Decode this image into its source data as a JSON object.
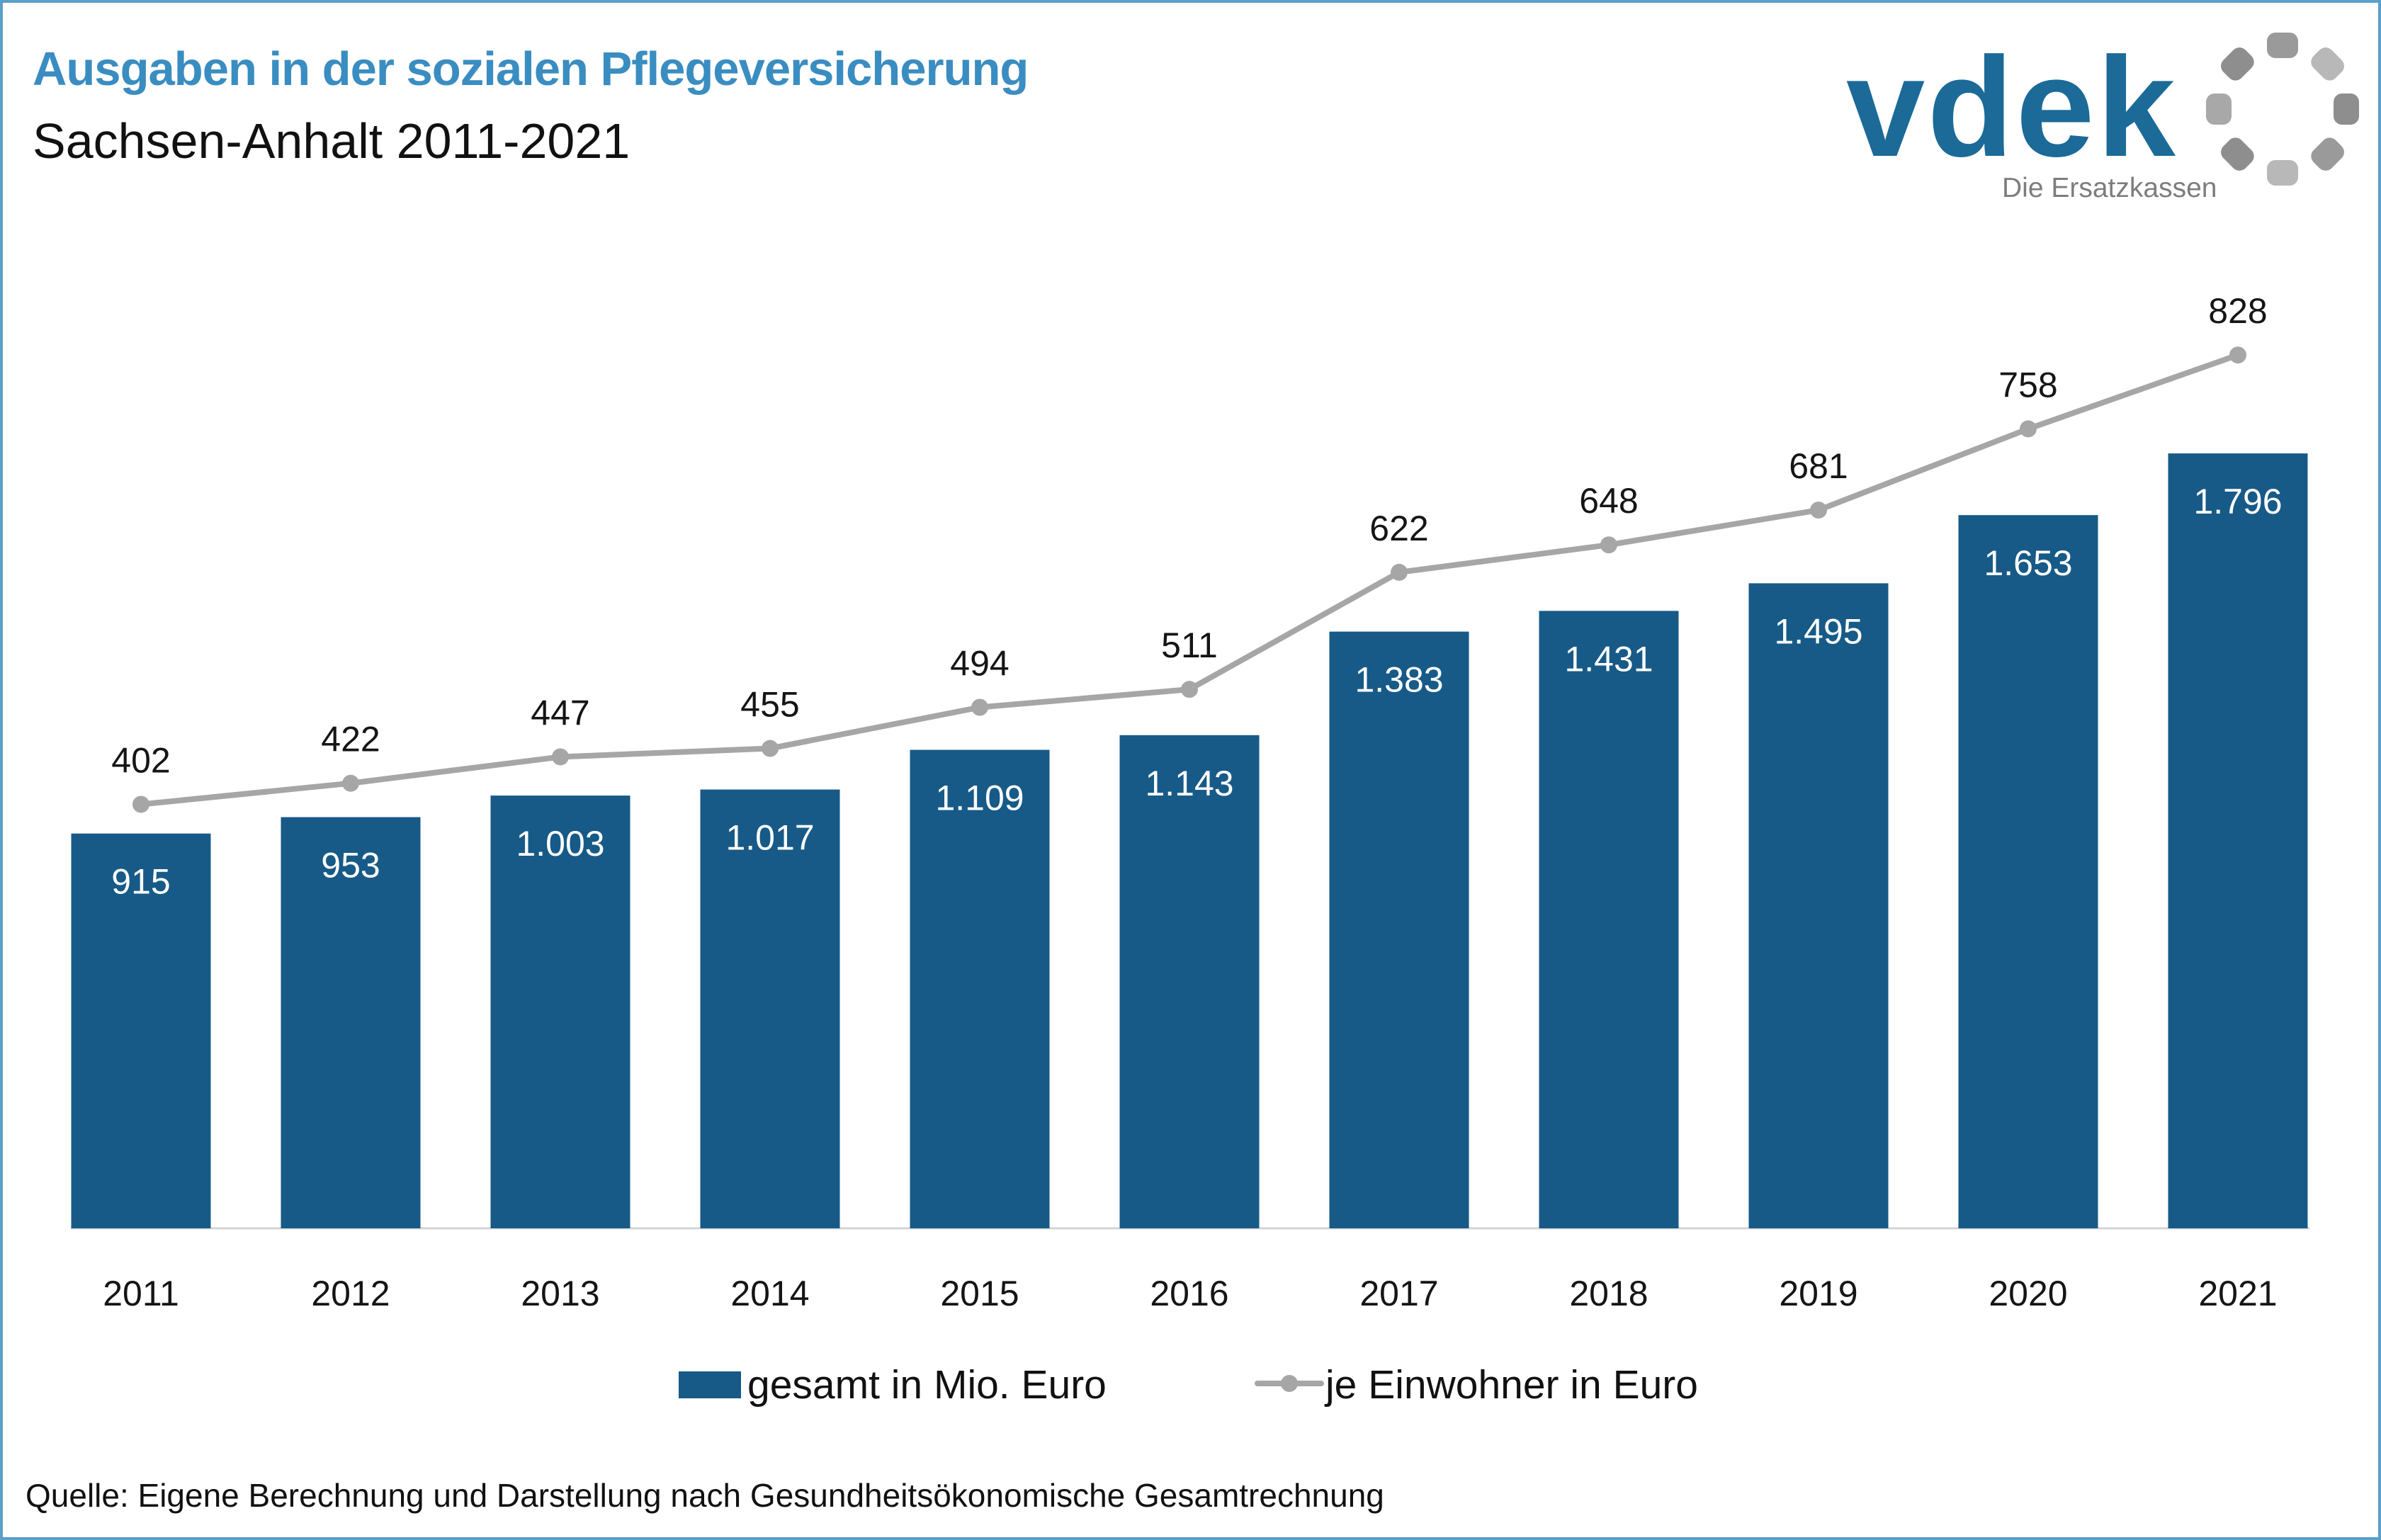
{
  "chart_data": {
    "type": "bar",
    "title": "Ausgaben in der sozialen Pflegeversicherung",
    "subtitle": "Sachsen-Anhalt 2011-2021",
    "categories": [
      "2011",
      "2012",
      "2013",
      "2014",
      "2015",
      "2016",
      "2017",
      "2018",
      "2019",
      "2020",
      "2021"
    ],
    "series": [
      {
        "name": "gesamt in Mio. Euro",
        "type": "bar",
        "axis": "primary",
        "values": [
          915,
          953,
          1003,
          1017,
          1109,
          1143,
          1383,
          1431,
          1495,
          1653,
          1796
        ],
        "data_labels": [
          "915",
          "953",
          "1.003",
          "1.017",
          "1.109",
          "1.143",
          "1.383",
          "1.431",
          "1.495",
          "1.653",
          "1.796"
        ]
      },
      {
        "name": "je Einwohner in Euro",
        "type": "line",
        "axis": "secondary",
        "values": [
          402,
          422,
          447,
          455,
          494,
          511,
          622,
          648,
          681,
          758,
          828
        ]
      }
    ],
    "ylim": [
      0,
      2200
    ],
    "y2lim": [
      0,
      900
    ],
    "grid": false,
    "legend": "bottom"
  },
  "logo": {
    "wordmark": "vdek",
    "tagline": "Die Ersatzkassen",
    "icon": "dot-ring-icon"
  },
  "footer": {
    "source": "Quelle: Eigene Berechnung und Darstellung nach Gesundheitsökonomische Gesamtrechnung"
  },
  "colors": {
    "title": "#3a8dc1",
    "bars": "#175a87",
    "line": "#a6a6a6",
    "logo": "#1c6a98",
    "frame": "#5a9fca"
  }
}
